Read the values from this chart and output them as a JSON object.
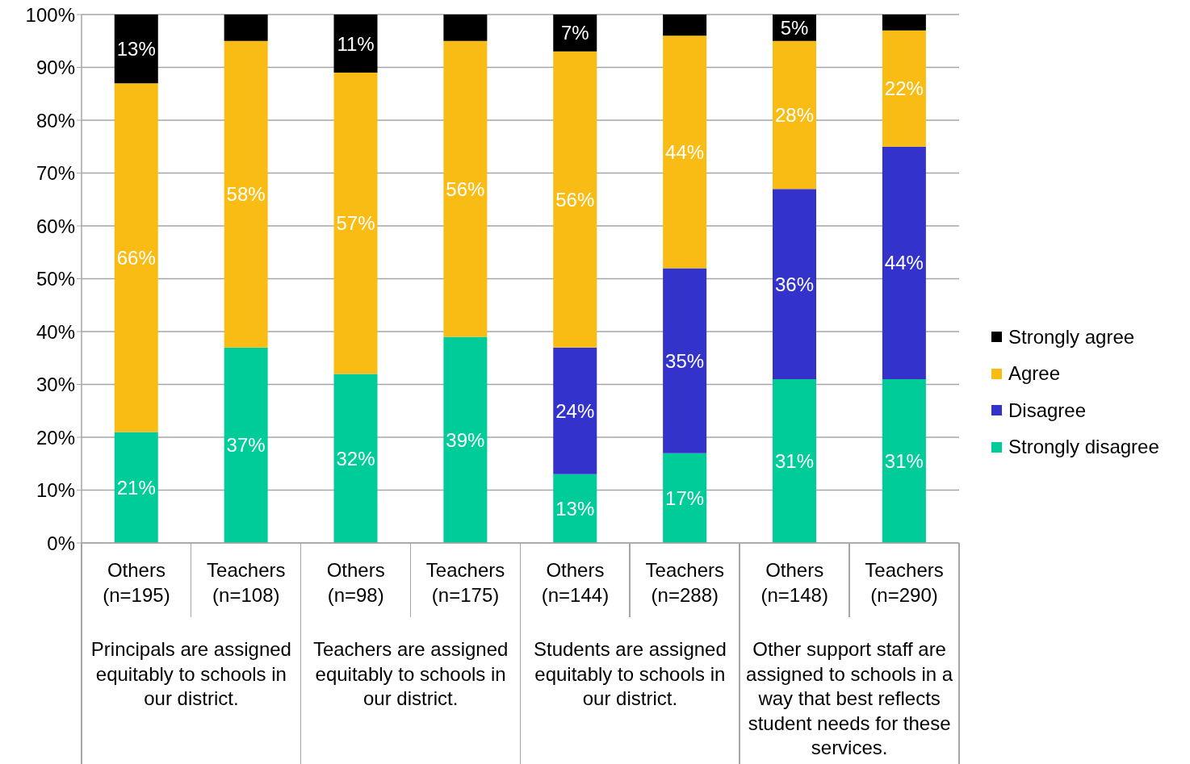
{
  "chart_data": {
    "type": "bar",
    "stacked": true,
    "categories": [
      "Others\n(n=195)",
      "Teachers\n(n=108)",
      "Others\n(n=98)",
      "Teachers\n(n=175)",
      "Others\n(n=144)",
      "Teachers\n(n=288)",
      "Others\n(n=148)",
      "Teachers\n(n=290)"
    ],
    "annotations": [
      "Principals are assigned equitably to schools in our district.",
      "Teachers are assigned equitably to schools in our district.",
      "Students are assigned equitably to schools in our district.",
      "Other support staff are assigned to schools in a way that best reflects student needs for these services."
    ],
    "series": [
      {
        "name": "Strongly disagree",
        "color": "#00cc99",
        "values": [
          21,
          37,
          32,
          39,
          13,
          17,
          31,
          31
        ],
        "value_labels": [
          "21%",
          "37%",
          "32%",
          "39%",
          "13%",
          "17%",
          "31%",
          "31%"
        ]
      },
      {
        "name": "Disagree",
        "color": "#3333cc",
        "values": [
          null,
          null,
          null,
          null,
          24,
          35,
          36,
          44
        ],
        "value_labels": [
          null,
          null,
          null,
          null,
          "24%",
          "35%",
          "36%",
          "44%"
        ]
      },
      {
        "name": "Agree",
        "color": "#f9bc15",
        "values": [
          66,
          58,
          57,
          56,
          56,
          44,
          28,
          22
        ],
        "value_labels": [
          "66%",
          "58%",
          "57%",
          "56%",
          "56%",
          "44%",
          "28%",
          "22%"
        ]
      },
      {
        "name": "Strongly agree",
        "color": "#000000",
        "values": [
          13,
          5,
          11,
          5,
          7,
          4,
          5,
          3
        ],
        "value_labels": [
          "13%",
          null,
          "11%",
          null,
          "7%",
          null,
          "5%",
          null
        ]
      }
    ],
    "ylim": [
      0,
      100
    ],
    "yticks": [
      {
        "value": 0,
        "label": "0%"
      },
      {
        "value": 10,
        "label": "10%"
      },
      {
        "value": 20,
        "label": "20%"
      },
      {
        "value": 30,
        "label": "30%"
      },
      {
        "value": 40,
        "label": "40%"
      },
      {
        "value": 50,
        "label": "50%"
      },
      {
        "value": 60,
        "label": "60%"
      },
      {
        "value": 70,
        "label": "70%"
      },
      {
        "value": 80,
        "label": "80%"
      },
      {
        "value": 90,
        "label": "90%"
      },
      {
        "value": 100,
        "label": "100%"
      }
    ],
    "grid": "y",
    "legend": "right"
  }
}
